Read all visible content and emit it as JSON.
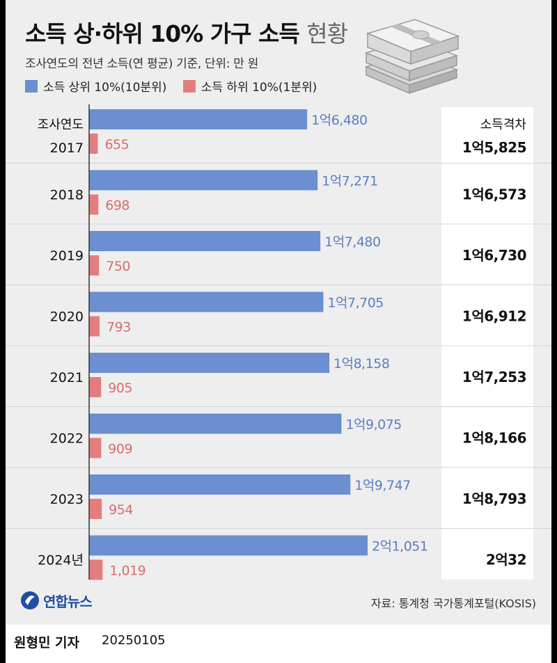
{
  "header": {
    "title_bold": "소득 상·하위 10% 가구 소득",
    "title_light": "현황",
    "subtitle": "조사연도의 전년 소득(연 평균) 기준, 단위: 만 원"
  },
  "legend": {
    "top10_label": "소득 상위 10%(10분위)",
    "bottom10_label": "소득 하위 10%(1분위)"
  },
  "colors": {
    "top10": "#6b8fd0",
    "bottom10": "#e47e7e",
    "top10_text": "#5a7fc2",
    "bottom10_text": "#d96d6d"
  },
  "chart_data": {
    "type": "bar",
    "orientation": "horizontal",
    "category_header": "조사연도",
    "categories": [
      "2017",
      "2018",
      "2019",
      "2020",
      "2021",
      "2022",
      "2023",
      "2024년"
    ],
    "series": [
      {
        "name": "소득 상위 10%(10분위)",
        "values": [
          16480,
          17271,
          17480,
          17705,
          18158,
          19075,
          19747,
          21051
        ],
        "labels": [
          "1억6,480",
          "1억7,271",
          "1억7,480",
          "1억7,705",
          "1억8,158",
          "1억9,075",
          "1억9,747",
          "2억1,051"
        ]
      },
      {
        "name": "소득 하위 10%(1분위)",
        "values": [
          655,
          698,
          750,
          793,
          905,
          909,
          954,
          1019
        ],
        "labels": [
          "655",
          "698",
          "750",
          "793",
          "905",
          "909",
          "954",
          "1,019"
        ]
      }
    ],
    "gap_header": "소득격차",
    "gap_values": [
      15825,
      16573,
      16730,
      16912,
      17253,
      18166,
      18793,
      20032
    ],
    "gap_labels": [
      "1억5,825",
      "1억6,573",
      "1억6,730",
      "1억6,912",
      "1억7,253",
      "1억8,166",
      "1억8,793",
      "2억32"
    ]
  },
  "footer": {
    "logo_text": "연합뉴스",
    "source": "자료: 통계청 국가통계포털(KOSIS)",
    "reporter": "원형민 기자",
    "date": "20250105"
  }
}
